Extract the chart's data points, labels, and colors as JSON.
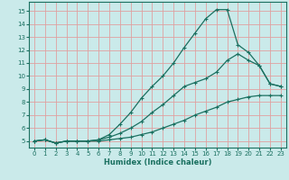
{
  "xlabel": "Humidex (Indice chaleur)",
  "bg_color": "#caeaea",
  "grid_color": "#e0a0a0",
  "line_color": "#1a7060",
  "xlim": [
    -0.5,
    23.5
  ],
  "ylim": [
    4.5,
    15.7
  ],
  "xticks": [
    0,
    1,
    2,
    3,
    4,
    5,
    6,
    7,
    8,
    9,
    10,
    11,
    12,
    13,
    14,
    15,
    16,
    17,
    18,
    19,
    20,
    21,
    22,
    23
  ],
  "yticks": [
    5,
    6,
    7,
    8,
    9,
    10,
    11,
    12,
    13,
    14,
    15
  ],
  "series1_x": [
    0,
    1,
    2,
    3,
    4,
    5,
    6,
    7,
    8,
    9,
    10,
    11,
    12,
    13,
    14,
    15,
    16,
    17,
    18,
    19,
    20,
    21,
    22,
    23
  ],
  "series1_y": [
    5.0,
    5.1,
    4.85,
    5.0,
    5.0,
    5.0,
    5.0,
    5.1,
    5.2,
    5.3,
    5.5,
    5.7,
    6.0,
    6.3,
    6.6,
    7.0,
    7.3,
    7.6,
    8.0,
    8.2,
    8.4,
    8.5,
    8.5,
    8.5
  ],
  "series2_x": [
    0,
    1,
    2,
    3,
    4,
    5,
    6,
    7,
    8,
    9,
    10,
    11,
    12,
    13,
    14,
    15,
    16,
    17,
    18,
    19,
    20,
    21,
    22,
    23
  ],
  "series2_y": [
    5.0,
    5.1,
    4.85,
    5.0,
    5.0,
    5.0,
    5.1,
    5.5,
    6.3,
    7.2,
    8.3,
    9.2,
    10.0,
    11.0,
    12.2,
    13.3,
    14.4,
    15.1,
    15.1,
    12.4,
    11.8,
    10.8,
    9.4,
    9.2
  ],
  "series3_x": [
    0,
    1,
    2,
    3,
    4,
    5,
    6,
    7,
    8,
    9,
    10,
    11,
    12,
    13,
    14,
    15,
    16,
    17,
    18,
    19,
    20,
    21,
    22,
    23
  ],
  "series3_y": [
    5.0,
    5.1,
    4.85,
    5.0,
    5.0,
    5.0,
    5.1,
    5.3,
    5.6,
    6.0,
    6.5,
    7.2,
    7.8,
    8.5,
    9.2,
    9.5,
    9.8,
    10.3,
    11.2,
    11.7,
    11.2,
    10.8,
    9.4,
    9.2
  ]
}
